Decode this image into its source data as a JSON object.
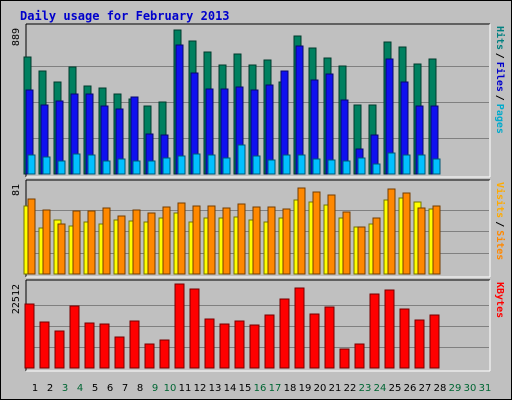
{
  "chart_data": {
    "type": "bar",
    "title": "Daily usage for February 2013",
    "categories": [
      "1",
      "2",
      "3",
      "4",
      "5",
      "6",
      "7",
      "8",
      "9",
      "10",
      "11",
      "12",
      "13",
      "14",
      "15",
      "16",
      "17",
      "18",
      "19",
      "20",
      "21",
      "22",
      "23",
      "24",
      "25",
      "26",
      "27",
      "28",
      "29",
      "30",
      "31"
    ],
    "day_label_colors": [
      "#000000",
      "#000000",
      "#006633",
      "#006633",
      "#000000",
      "#000000",
      "#000000",
      "#000000",
      "#006633",
      "#006633",
      "#000000",
      "#000000",
      "#000000",
      "#000000",
      "#000000",
      "#006633",
      "#006633",
      "#000000",
      "#000000",
      "#000000",
      "#000000",
      "#000000",
      "#006633",
      "#006633",
      "#000000",
      "#000000",
      "#000000",
      "#000000",
      "#006633",
      "#006633",
      "#006633"
    ],
    "panels": [
      {
        "id": "hits-files-pages",
        "max_label": "889",
        "ylim": [
          0,
          889
        ],
        "axis_labels": [
          {
            "text": "Hits",
            "color": "#008080"
          },
          {
            "text": "Files",
            "color": "#0000cc"
          },
          {
            "text": "Pages",
            "color": "#00aacc"
          }
        ],
        "series": [
          {
            "name": "Hits",
            "color": "#008060",
            "values": [
              722,
              635,
              566,
              663,
              542,
              529,
              493,
              464,
              420,
              445,
              889,
              823,
              751,
              675,
              738,
              673,
              706,
              567,
              850,
              779,
              714,
              664,
              429,
              426,
              812,
              786,
              680,
              708
            ]
          },
          {
            "name": "Files",
            "color": "#1010f0",
            "values": [
              519,
              427,
              448,
              494,
              496,
              421,
              400,
              477,
              250,
              240,
              797,
              621,
              526,
              524,
              536,
              516,
              548,
              633,
              790,
              583,
              615,
              459,
              157,
              240,
              707,
              566,
              417,
              418
            ]
          },
          {
            "name": "Pages",
            "color": "#00c0ff",
            "values": [
              117,
              103,
              78,
              123,
              119,
              78,
              94,
              79,
              79,
              99,
              114,
              122,
              120,
              98,
              180,
              112,
              88,
              115,
              118,
              92,
              87,
              80,
              96,
              64,
              128,
              118,
              115,
              93
            ]
          }
        ]
      },
      {
        "id": "visits-sites",
        "max_label": "81",
        "ylim": [
          0,
          81
        ],
        "axis_labels": [
          {
            "text": "Visits",
            "color": "#ffaa00"
          },
          {
            "text": "Sites",
            "color": "#ff8800"
          }
        ],
        "series": [
          {
            "name": "Visits",
            "color": "#ffff00",
            "values": [
              64,
              43,
              51,
              45,
              49,
              47,
              51,
              50,
              49,
              53,
              57,
              49,
              53,
              53,
              54,
              51,
              49,
              53,
              70,
              68,
              65,
              53,
              44,
              47,
              70,
              72,
              68,
              61
            ]
          },
          {
            "name": "Sites",
            "color": "#ff8800",
            "values": [
              71,
              60,
              47,
              59,
              59,
              62,
              55,
              60,
              57,
              63,
              67,
              64,
              64,
              62,
              66,
              63,
              63,
              61,
              81,
              77,
              74,
              58,
              44,
              53,
              80,
              76,
              62,
              64
            ]
          }
        ]
      },
      {
        "id": "kbytes",
        "max_label": "22512",
        "ylim": [
          0,
          22512
        ],
        "axis_labels": [
          {
            "text": "KBytes",
            "color": "#ff0000"
          }
        ],
        "series": [
          {
            "name": "KBytes",
            "color": "#ff0000",
            "values": [
              17150,
              12255,
              9875,
              16625,
              12150,
              11875,
              8400,
              12550,
              6500,
              7500,
              22512,
              21050,
              13150,
              11750,
              12600,
              11600,
              14300,
              18450,
              21450,
              14550,
              16380,
              5150,
              6380,
              19800,
              20900,
              15850,
              12900,
              14090
            ]
          }
        ]
      }
    ]
  }
}
